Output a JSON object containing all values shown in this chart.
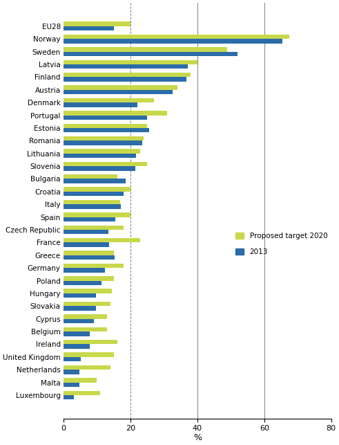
{
  "countries": [
    "EU28",
    "Norway",
    "Sweden",
    "Latvia",
    "Finland",
    "Austria",
    "Denmark",
    "Portugal",
    "Estonia",
    "Romania",
    "Lithuania",
    "Slovenia",
    "Bulgaria",
    "Croatia",
    "Italy",
    "Spain",
    "Czech Republic",
    "France",
    "Greece",
    "Germany",
    "Poland",
    "Hungary",
    "Slovakia",
    "Cyprus",
    "Belgium",
    "Ireland",
    "United Kingdom",
    "Netherlands",
    "Malta",
    "Luxembourg"
  ],
  "target_2020": [
    20,
    67.5,
    49,
    40,
    38,
    34,
    27,
    31,
    25,
    24,
    23,
    25,
    16,
    20,
    17,
    20,
    18,
    23,
    15,
    18,
    15,
    14.5,
    14,
    13,
    13,
    16,
    15,
    14,
    10,
    11
  ],
  "val_2013": [
    15,
    65.5,
    52,
    37.1,
    36.8,
    32.6,
    22,
    25,
    25.6,
    23.5,
    21.7,
    21.5,
    18.5,
    18.0,
    17.1,
    15.4,
    13.4,
    13.7,
    15.3,
    12.4,
    11.3,
    9.8,
    9.8,
    9.0,
    7.9,
    7.8,
    5.1,
    4.8,
    4.7,
    3.1
  ],
  "color_target": "#c8d84b",
  "color_2013": "#2b6ca8",
  "bar_height": 0.35,
  "xlim": [
    0,
    80
  ],
  "xticks": [
    0,
    20,
    40,
    60,
    80
  ],
  "xlabel": "%",
  "solid_vlines": [
    40,
    60,
    80
  ],
  "dashed_vline": 20,
  "legend_labels": [
    "Proposed target 2020",
    "2013"
  ],
  "figsize": [
    4.91,
    6.43
  ],
  "dpi": 100
}
